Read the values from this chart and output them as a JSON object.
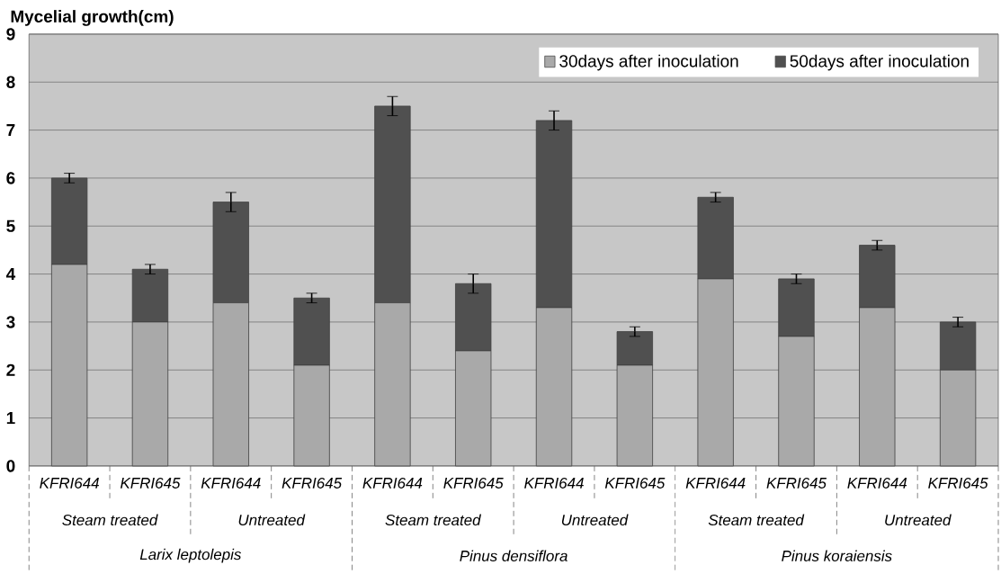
{
  "chart_data": {
    "type": "bar",
    "stacked": true,
    "ylabel": "Mycelial growth(cm)",
    "categories": [
      "KFRI644",
      "KFRI645",
      "KFRI644",
      "KFRI645",
      "KFRI644",
      "KFRI645",
      "KFRI644",
      "KFRI645",
      "KFRI644",
      "KFRI645",
      "KFRI644",
      "KFRI645"
    ],
    "series": [
      {
        "name": "30days after inoculation",
        "color": "#a9a9a9",
        "values": [
          4.2,
          3.0,
          3.4,
          2.1,
          3.4,
          2.4,
          3.3,
          2.1,
          3.9,
          2.7,
          3.3,
          2.0
        ]
      },
      {
        "name": "50days after inoculation",
        "color": "#505050",
        "values": [
          1.8,
          1.1,
          2.1,
          1.4,
          4.1,
          1.4,
          3.9,
          0.7,
          1.7,
          1.2,
          1.3,
          1.0
        ],
        "errors": [
          0.1,
          0.1,
          0.2,
          0.1,
          0.2,
          0.2,
          0.2,
          0.1,
          0.1,
          0.1,
          0.1,
          0.1
        ]
      }
    ],
    "annotations": [
      "Steam treated",
      "Untreated",
      "Steam treated",
      "Untreated",
      "Steam treated",
      "Untreated",
      "Larix leptolepis",
      "Pinus densiflora",
      "Pinus koraiensis"
    ],
    "ylim": [
      0,
      9
    ],
    "yticks": [
      0,
      1,
      2,
      3,
      4,
      5,
      6,
      7,
      8,
      9
    ],
    "grid": "y",
    "legend": "top right"
  }
}
